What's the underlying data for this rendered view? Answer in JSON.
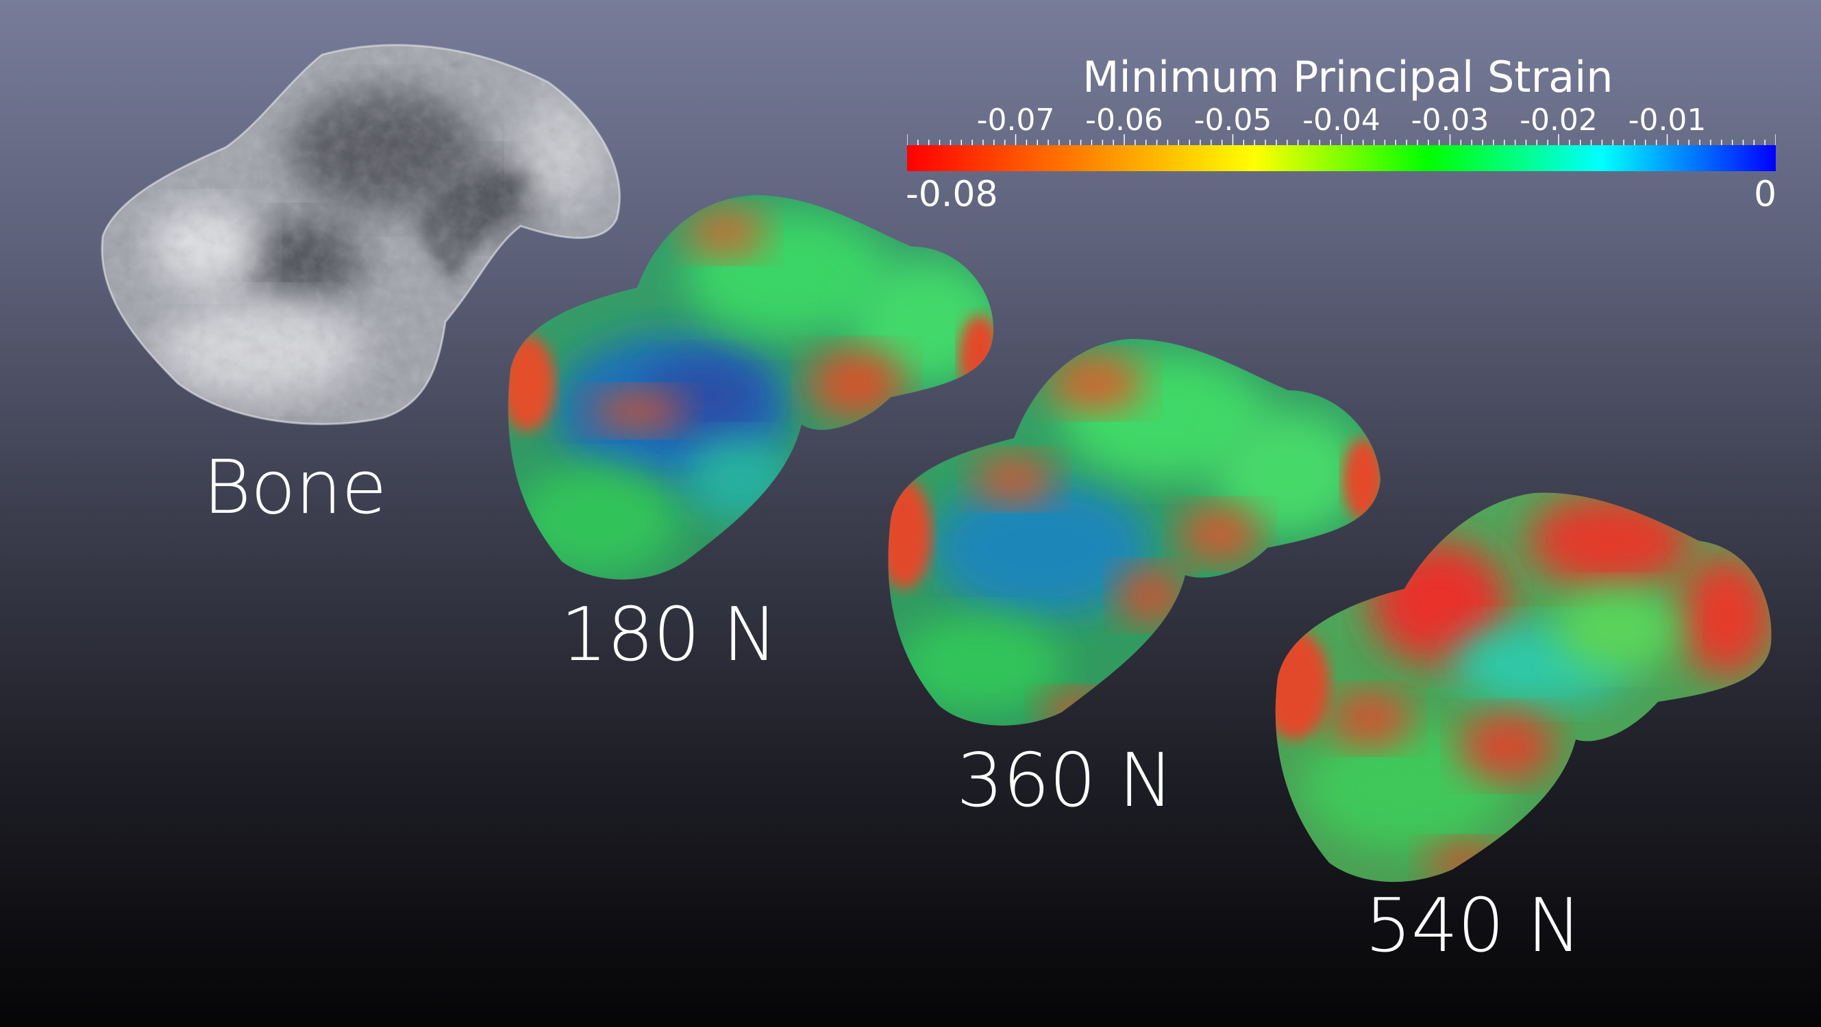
{
  "legend": {
    "title": "Minimum Principal Strain",
    "ticks": [
      "-0.07",
      "-0.06",
      "-0.05",
      "-0.04",
      "-0.03",
      "-0.02",
      "-0.01"
    ],
    "min_label": "-0.08",
    "max_label": "0",
    "colors": [
      "#ff0000",
      "#ff8000",
      "#ffff00",
      "#00ff00",
      "#00ffff",
      "#0000ff"
    ]
  },
  "labels": {
    "bone": "Bone",
    "load_180": "180 N",
    "load_360": "360 N",
    "load_540": "540 N"
  },
  "colors": {
    "background_top": "#777c99",
    "background_bottom": "#050506"
  }
}
